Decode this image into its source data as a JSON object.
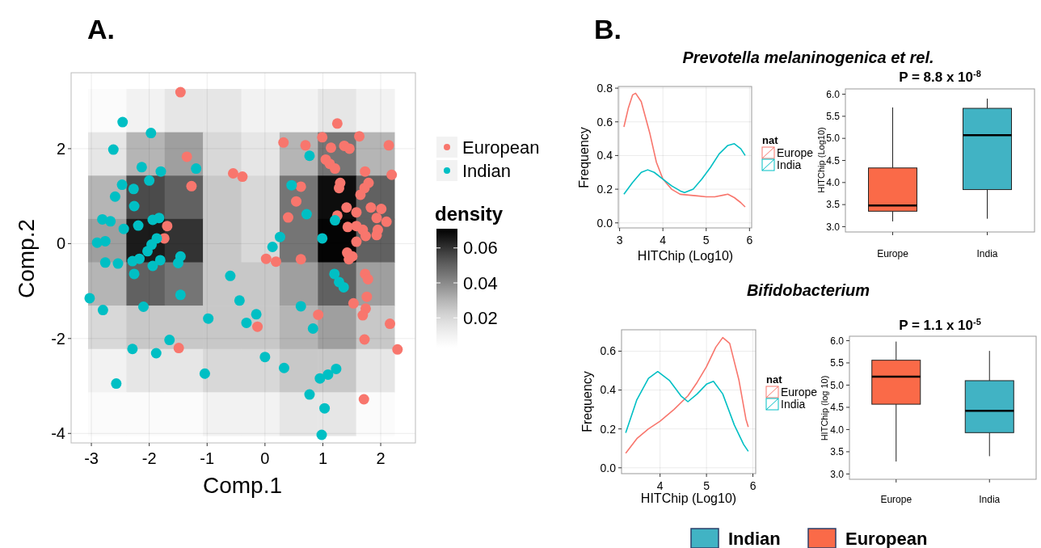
{
  "chart_data": [
    {
      "type": "heatmap",
      "categories": [
        null,
        null,
        null,
        null,
        null,
        null,
        null,
        null
      ],
      "y_categories": [
        null,
        null,
        null,
        null,
        null,
        null,
        null,
        null
      ],
      "clabel": "density",
      "clim": [
        0.003,
        0.071
      ],
      "cticks": [
        0.02,
        0.04,
        0.06
      ],
      "cells": [
        [
          0.005,
          0.01,
          0.015,
          0.015,
          0.01,
          0.01,
          0.015,
          0.01
        ],
        [
          0.015,
          0.03,
          0.035,
          0.02,
          0.015,
          0.03,
          0.045,
          0.03
        ],
        [
          0.03,
          0.055,
          0.05,
          0.025,
          0.02,
          0.045,
          0.068,
          0.05
        ],
        [
          0.035,
          0.065,
          0.06,
          0.025,
          0.02,
          0.045,
          0.07,
          0.05
        ],
        [
          0.03,
          0.05,
          0.045,
          0.025,
          0.025,
          0.035,
          0.05,
          0.035
        ],
        [
          0.02,
          0.025,
          0.025,
          0.025,
          0.025,
          0.03,
          0.035,
          0.025
        ],
        [
          0.01,
          0.015,
          0.015,
          0.02,
          0.02,
          0.025,
          0.025,
          0.015
        ],
        [
          0.005,
          0.005,
          0.005,
          0.01,
          0.01,
          0.015,
          0.015,
          0.005
        ]
      ]
    },
    {
      "type": "scatter",
      "title": "A.",
      "xlabel": "Comp.1",
      "ylabel": "Comp.2",
      "xlim": [
        -3.35,
        2.6
      ],
      "xticks": [
        -3,
        -2,
        -1,
        0,
        1,
        2
      ],
      "ylim": [
        -4.2,
        3.6
      ],
      "yticks": [
        -4,
        -2,
        0,
        2
      ],
      "grid": true,
      "legend": "right",
      "marker": "circle",
      "series": [
        {
          "name": "European",
          "color": "#f8766d",
          "x": [
            -1.46,
            -1.35,
            -1.27,
            -0.55,
            -0.39,
            -1.69,
            -1.74,
            0.32,
            0.7,
            0.99,
            1.25,
            1.63,
            2.14,
            1.14,
            1.37,
            1.46,
            1.05,
            1.12,
            1.21,
            2.19,
            1.73,
            1.3,
            1.28,
            1.79,
            1.72,
            1.65,
            0.62,
            0.54,
            0.4,
            1.25,
            1.41,
            1.58,
            1.83,
            2.01,
            1.93,
            2.1,
            1.43,
            1.58,
            1.69,
            1.74,
            1.58,
            1.93,
            1.95,
            1.42,
            1.45,
            1.51,
            0.02,
            0.19,
            0.62,
            1.73,
            1.78,
            1.76,
            1.53,
            1.74,
            1.69,
            0.92,
            -0.13,
            2.16,
            1.72,
            2.29,
            -1.49,
            1.71
          ],
          "values": [
            3.19,
            1.83,
            1.21,
            1.48,
            1.41,
            0.37,
            0.11,
            2.13,
            2.07,
            2.24,
            2.53,
            2.26,
            2.07,
            2.02,
            2.06,
            2.0,
            1.77,
            1.68,
            1.58,
            1.45,
            1.52,
            1.28,
            1.17,
            1.28,
            1.17,
            1.03,
            1.2,
            0.89,
            0.55,
            0.59,
            0.76,
            0.66,
            0.76,
            0.73,
            0.54,
            0.46,
            0.35,
            0.37,
            0.29,
            0.16,
            0.04,
            0.18,
            0.29,
            -0.19,
            -0.33,
            -0.27,
            -0.32,
            -0.38,
            -0.33,
            -0.64,
            -0.75,
            -1.12,
            -1.26,
            -1.37,
            -1.51,
            -1.5,
            -1.75,
            -1.69,
            -2.02,
            -2.23,
            -2.2,
            -3.28
          ]
        },
        {
          "name": "Indian",
          "color": "#00bfc4",
          "x": [
            -2.46,
            -1.97,
            -2.62,
            -2.13,
            -1.8,
            -2.0,
            -1.19,
            -2.47,
            -2.27,
            -2.59,
            -2.26,
            -2.81,
            -2.67,
            -2.44,
            -2.19,
            -1.94,
            -1.83,
            -1.87,
            -1.96,
            -2.03,
            -2.9,
            -2.76,
            -2.76,
            -2.54,
            -2.29,
            -2.17,
            -1.94,
            -1.81,
            -1.46,
            -1.5,
            -2.26,
            -3.03,
            -2.8,
            -2.1,
            -1.46,
            -0.98,
            -0.6,
            -0.44,
            -0.32,
            -0.15,
            -1.65,
            -2.29,
            -1.88,
            -2.57,
            -1.04,
            0.0,
            0.33,
            0.77,
            0.46,
            0.72,
            1.21,
            0.99,
            0.26,
            0.13,
            1.2,
            1.28,
            1.36,
            0.62,
            0.83,
            0.95,
            1.09,
            1.23,
            0.77,
            1.03,
            0.98
          ],
          "values": [
            2.56,
            2.33,
            1.98,
            1.61,
            1.52,
            1.33,
            1.58,
            1.24,
            1.15,
            0.99,
            0.79,
            0.51,
            0.47,
            0.31,
            0.38,
            0.5,
            0.54,
            0.11,
            -0.02,
            -0.16,
            0.02,
            0.05,
            -0.4,
            -0.42,
            -0.37,
            -0.32,
            -0.47,
            -0.35,
            -0.27,
            -0.41,
            -0.64,
            -1.15,
            -1.4,
            -1.33,
            -1.08,
            -1.58,
            -0.68,
            -1.2,
            -1.67,
            -1.49,
            -2.03,
            -2.22,
            -2.31,
            -2.95,
            -2.74,
            -2.39,
            -2.62,
            1.85,
            1.23,
            0.62,
            0.49,
            0.11,
            0.14,
            -0.07,
            -0.64,
            -0.81,
            -0.92,
            -1.32,
            -1.79,
            -2.84,
            -2.76,
            -2.64,
            -3.18,
            -3.47,
            -4.03
          ]
        }
      ]
    },
    {
      "type": "line",
      "title": "Prevotella melaninogenica et rel.",
      "annotations": [
        "B."
      ],
      "xlabel": "HITChip (Log10)",
      "ylabel": "Frequency",
      "xlim": [
        2.97,
        6.05
      ],
      "xticks": [
        3,
        4,
        5,
        6
      ],
      "ylim": [
        -0.03,
        0.81
      ],
      "yticks": [
        {
          "value": 0,
          "label": "0.0"
        },
        0.2,
        0.4,
        0.6,
        0.8
      ],
      "grid": true,
      "legend": "right",
      "legend_title": "nat",
      "series": [
        {
          "name": "Europe",
          "color": "#f8766d",
          "x": [
            3.1,
            3.2,
            3.3,
            3.37,
            3.5,
            3.7,
            3.85,
            4.0,
            4.2,
            4.4,
            4.6,
            4.8,
            5.0,
            5.2,
            5.4,
            5.5,
            5.65,
            5.8,
            5.9
          ],
          "values": [
            0.57,
            0.68,
            0.76,
            0.77,
            0.72,
            0.53,
            0.36,
            0.26,
            0.2,
            0.17,
            0.165,
            0.16,
            0.155,
            0.155,
            0.165,
            0.17,
            0.15,
            0.12,
            0.095
          ]
        },
        {
          "name": "India",
          "color": "#00bfc4",
          "x": [
            3.1,
            3.3,
            3.5,
            3.65,
            3.8,
            4.0,
            4.2,
            4.4,
            4.5,
            4.7,
            4.9,
            5.1,
            5.3,
            5.5,
            5.65,
            5.8,
            5.9
          ],
          "values": [
            0.17,
            0.24,
            0.3,
            0.315,
            0.3,
            0.26,
            0.22,
            0.19,
            0.18,
            0.2,
            0.26,
            0.33,
            0.41,
            0.46,
            0.47,
            0.44,
            0.4
          ]
        }
      ]
    },
    {
      "type": "box",
      "title": "P = 8.8 x 10$^{-8}$",
      "ylabel": "HITChip (Log10)",
      "categories": [
        "Europe",
        "India"
      ],
      "ylim": [
        2.88,
        6.12
      ],
      "yticks": [
        {
          "value": 3,
          "label": "3.0"
        },
        3.5,
        {
          "value": 4,
          "label": "4.0"
        },
        4.5,
        {
          "value": 5,
          "label": "5.0"
        },
        5.5,
        {
          "value": 6,
          "label": "6.0"
        }
      ],
      "series": [
        {
          "color": "#41b3c4",
          "boxes": [
            null,
            {
              "low": 3.18,
              "q1": 3.84,
              "median": 5.07,
              "q3": 5.68,
              "high": 5.9
            }
          ]
        },
        {
          "color": "#fa6a48",
          "boxes": [
            {
              "low": 3.12,
              "q1": 3.35,
              "median": 3.48,
              "q3": 4.33,
              "high": 5.7
            },
            null
          ]
        }
      ]
    },
    {
      "type": "line",
      "title": "Bifidobacterium",
      "xlabel": "HITChip (Log10)",
      "ylabel": "Frequency",
      "xlim": [
        3.17,
        6.06
      ],
      "xticks": [
        4,
        5,
        6
      ],
      "ylim": [
        -0.03,
        0.71
      ],
      "yticks": [
        {
          "value": 0,
          "label": "0.0"
        },
        0.2,
        0.4,
        0.6
      ],
      "grid": true,
      "legend": "right",
      "legend_title": "nat",
      "series": [
        {
          "name": "Europe",
          "color": "#f8766d",
          "x": [
            3.26,
            3.5,
            3.75,
            4.0,
            4.3,
            4.6,
            4.8,
            5.0,
            5.2,
            5.35,
            5.5,
            5.7,
            5.85,
            5.9
          ],
          "values": [
            0.075,
            0.15,
            0.2,
            0.24,
            0.3,
            0.37,
            0.44,
            0.52,
            0.62,
            0.67,
            0.64,
            0.45,
            0.25,
            0.21
          ]
        },
        {
          "name": "India",
          "color": "#00bfc4",
          "x": [
            3.26,
            3.5,
            3.75,
            3.95,
            4.2,
            4.45,
            4.6,
            4.8,
            5.0,
            5.15,
            5.35,
            5.6,
            5.8,
            5.9
          ],
          "values": [
            0.18,
            0.35,
            0.46,
            0.495,
            0.45,
            0.37,
            0.34,
            0.38,
            0.43,
            0.445,
            0.38,
            0.22,
            0.12,
            0.085
          ]
        }
      ]
    },
    {
      "type": "box",
      "title": "P = 1.1 x 10$^{-5}$",
      "ylabel": "HITChip (log 10)",
      "categories": [
        "Europe",
        "India"
      ],
      "ylim": [
        2.88,
        6.1
      ],
      "yticks": [
        {
          "value": 3,
          "label": "3.0"
        },
        3.5,
        {
          "value": 4,
          "label": "4.0"
        },
        4.5,
        {
          "value": 5,
          "label": "5.0"
        },
        5.5,
        {
          "value": 6,
          "label": "6.0"
        }
      ],
      "legend": "bottom",
      "series": [
        {
          "name": "Indian",
          "color": "#41b3c4",
          "boxes": [
            null,
            {
              "low": 3.4,
              "q1": 3.93,
              "median": 4.42,
              "q3": 5.1,
              "high": 5.77
            }
          ]
        },
        {
          "name": "European",
          "color": "#fa6a48",
          "boxes": [
            {
              "low": 3.28,
              "q1": 4.57,
              "median": 5.19,
              "q3": 5.56,
              "high": 5.98
            },
            null
          ]
        }
      ]
    }
  ]
}
